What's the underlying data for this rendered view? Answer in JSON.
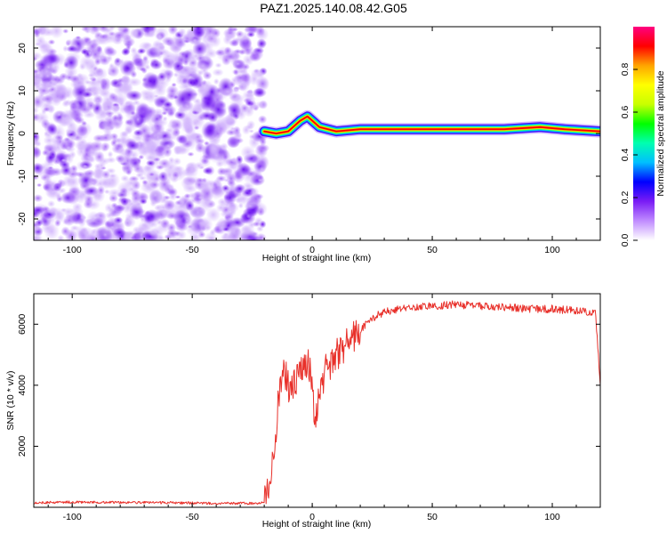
{
  "figure": {
    "title": "PAZ1.2025.140.08.42.G05"
  },
  "chart_data": [
    {
      "type": "heatmap",
      "xlabel": "Height of straight line (km)",
      "ylabel": "Frequency (Hz)",
      "xlim": [
        -116,
        120
      ],
      "ylim": [
        -25,
        25
      ],
      "x_ticks": [
        -100,
        -50,
        0,
        50,
        100
      ],
      "y_ticks": [
        -20,
        -10,
        0,
        10,
        20
      ],
      "grid": false,
      "noise_region_x": [
        -116,
        -20
      ],
      "signal_ridge": [
        {
          "x": -20,
          "y": 0.5
        },
        {
          "x": -15,
          "y": 0.0
        },
        {
          "x": -10,
          "y": 0.5
        },
        {
          "x": -5,
          "y": 3.0
        },
        {
          "x": -2,
          "y": 4.0
        },
        {
          "x": 0,
          "y": 3.0
        },
        {
          "x": 3,
          "y": 1.5
        },
        {
          "x": 10,
          "y": 0.5
        },
        {
          "x": 20,
          "y": 1.0
        },
        {
          "x": 50,
          "y": 1.0
        },
        {
          "x": 80,
          "y": 1.0
        },
        {
          "x": 95,
          "y": 1.5
        },
        {
          "x": 105,
          "y": 1.0
        },
        {
          "x": 120,
          "y": 0.5
        }
      ],
      "colorbar": {
        "label": "Normalized spectral amplitude",
        "range": [
          0.0,
          1.0
        ],
        "ticks": [
          0.0,
          0.2,
          0.4,
          0.6,
          0.8
        ],
        "colors": [
          "#ffffff",
          "#c08cff",
          "#7a1cf5",
          "#0000ff",
          "#00bfff",
          "#00ffb0",
          "#00ff00",
          "#c8ff00",
          "#ffff00",
          "#ffa500",
          "#ff0000",
          "#ff0080"
        ]
      }
    },
    {
      "type": "line",
      "xlabel": "Height of straight line (km)",
      "ylabel": "SNR (10 * v/v)",
      "xlim": [
        -116,
        120
      ],
      "ylim": [
        0,
        7000
      ],
      "x_ticks": [
        -100,
        -50,
        0,
        50,
        100
      ],
      "y_ticks": [
        2000,
        4000,
        6000
      ],
      "grid": false,
      "series": [
        {
          "color": "#e8302a",
          "values": [
            {
              "x": -116,
              "y": 150
            },
            {
              "x": -100,
              "y": 170
            },
            {
              "x": -80,
              "y": 160
            },
            {
              "x": -60,
              "y": 150
            },
            {
              "x": -40,
              "y": 130
            },
            {
              "x": -25,
              "y": 130
            },
            {
              "x": -20,
              "y": 150
            },
            {
              "x": -18,
              "y": 700
            },
            {
              "x": -16,
              "y": 1900
            },
            {
              "x": -14,
              "y": 3500
            },
            {
              "x": -12,
              "y": 4500
            },
            {
              "x": -10,
              "y": 4000
            },
            {
              "x": -8,
              "y": 3900
            },
            {
              "x": -6,
              "y": 4300
            },
            {
              "x": -4,
              "y": 4600
            },
            {
              "x": -2,
              "y": 4700
            },
            {
              "x": 0,
              "y": 4200
            },
            {
              "x": 1,
              "y": 2800
            },
            {
              "x": 3,
              "y": 3700
            },
            {
              "x": 5,
              "y": 4400
            },
            {
              "x": 10,
              "y": 5000
            },
            {
              "x": 15,
              "y": 5400
            },
            {
              "x": 20,
              "y": 5800
            },
            {
              "x": 25,
              "y": 6200
            },
            {
              "x": 30,
              "y": 6400
            },
            {
              "x": 40,
              "y": 6550
            },
            {
              "x": 50,
              "y": 6600
            },
            {
              "x": 60,
              "y": 6650
            },
            {
              "x": 70,
              "y": 6600
            },
            {
              "x": 80,
              "y": 6550
            },
            {
              "x": 90,
              "y": 6500
            },
            {
              "x": 100,
              "y": 6500
            },
            {
              "x": 110,
              "y": 6450
            },
            {
              "x": 115,
              "y": 6400
            },
            {
              "x": 118,
              "y": 6350
            },
            {
              "x": 120,
              "y": 4000
            }
          ]
        }
      ]
    }
  ]
}
